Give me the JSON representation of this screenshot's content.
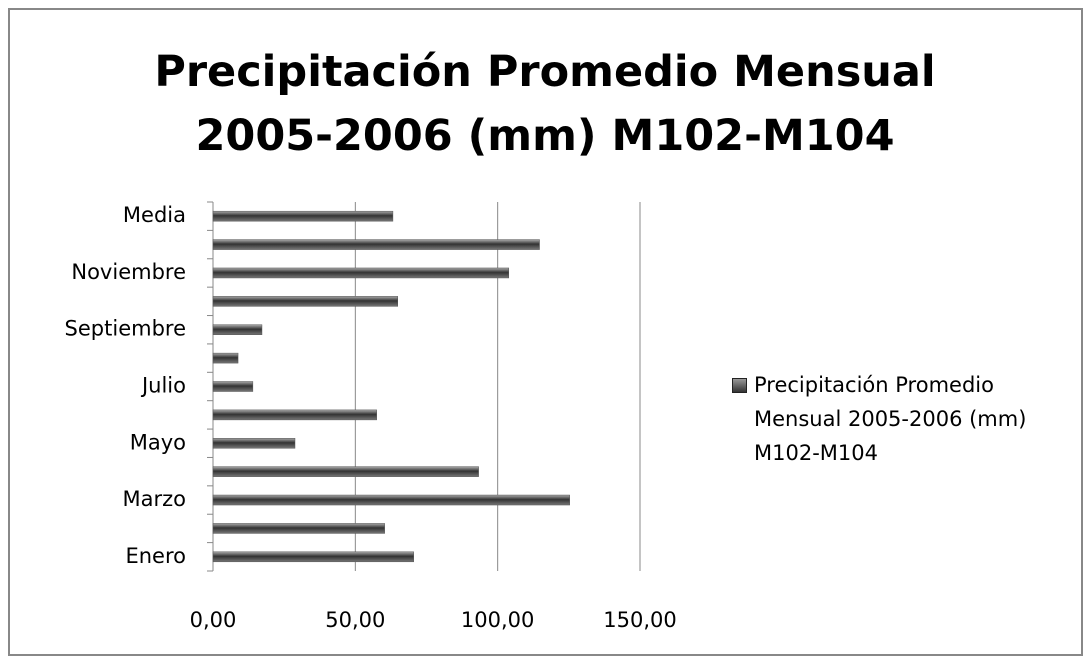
{
  "chart_data": {
    "type": "barh",
    "title": "Precipitación Promedio Mensual 2005-2006 (mm) M102-M104",
    "categories": [
      "Enero",
      null,
      "Marzo",
      null,
      "Mayo",
      null,
      "Julio",
      null,
      "Septiembre",
      null,
      "Noviembre",
      null,
      "Media"
    ],
    "series": [
      {
        "name": "Precipitación Promedio Mensual 2005-2006 (mm) M102-M104",
        "color": "#555555",
        "values": [
          70.5,
          60.3,
          125.3,
          93.3,
          28.8,
          57.5,
          14.0,
          8.8,
          17.2,
          64.9,
          103.9,
          114.7,
          63.2
        ]
      }
    ],
    "xlim": [
      0,
      150
    ],
    "xticks": [
      {
        "value": 0,
        "label": "0,00"
      },
      {
        "value": 50,
        "label": "50,00"
      },
      {
        "value": 100,
        "label": "100,00"
      },
      {
        "value": 150,
        "label": "150,00"
      }
    ],
    "grid": true,
    "legend": "right"
  }
}
